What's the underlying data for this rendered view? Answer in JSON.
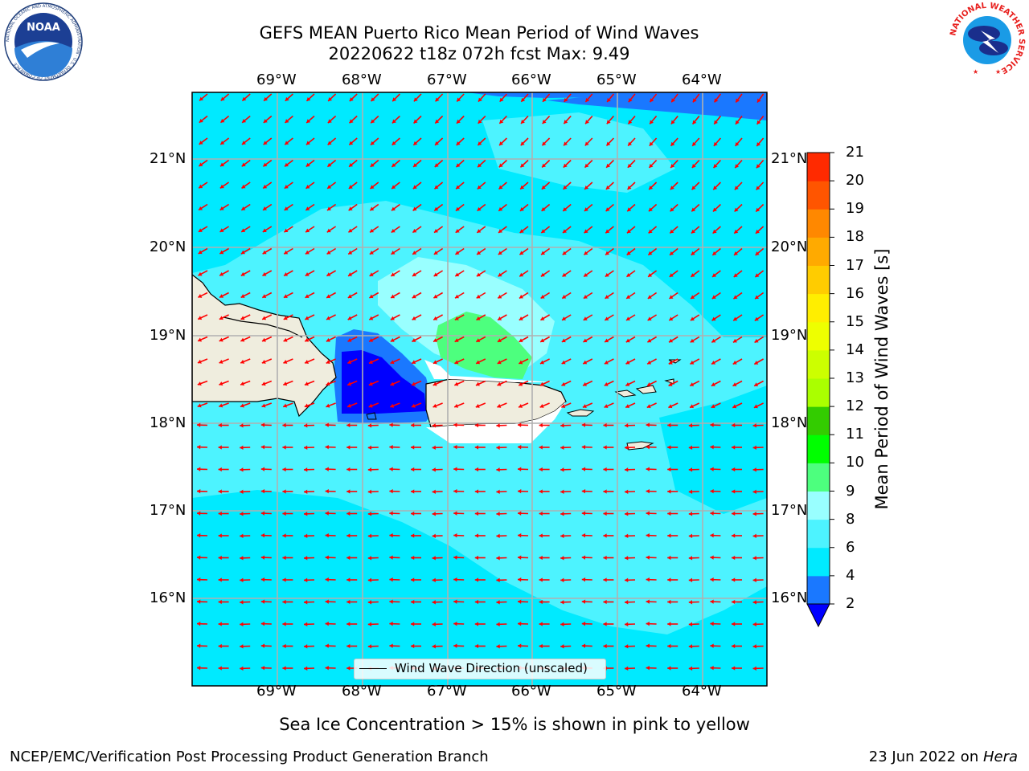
{
  "header": {
    "title_line1": "GEFS MEAN Puerto Rico Mean Period of Wind Waves",
    "title_line2": "20220622 t18z 072h fcst   Max: 9.49"
  },
  "map": {
    "lon_labels": [
      "69°W",
      "68°W",
      "67°W",
      "66°W",
      "65°W",
      "64°W"
    ],
    "lat_labels": [
      "21°N",
      "20°N",
      "19°N",
      "18°N",
      "17°N",
      "16°N"
    ],
    "legend_label": "Wind Wave Direction (unscaled)",
    "arrow_color": "#ff0000",
    "land_color": "#efedde",
    "grid_color": "#b0b0b0"
  },
  "colorbar": {
    "title": "Mean Period of Wind Waves [s]",
    "ticks": [
      "2",
      "4",
      "6",
      "8",
      "9",
      "10",
      "11",
      "12",
      "13",
      "14",
      "15",
      "16",
      "17",
      "18",
      "19",
      "20",
      "21"
    ],
    "colors": [
      "#0000ff",
      "#1a78ff",
      "#00eaff",
      "#4df3ff",
      "#99ffff",
      "#4dff7e",
      "#00ff00",
      "#33cc00",
      "#aaff00",
      "#ccff00",
      "#eeff00",
      "#ffee00",
      "#ffcc00",
      "#ffaa00",
      "#ff8800",
      "#ff5500",
      "#ff2a00",
      "#ff0000"
    ]
  },
  "footer": {
    "sea_ice_note": "Sea Ice Concentration > 15% is shown in pink to yellow",
    "branch": "NCEP/EMC/Verification Post Processing Product Generation Branch",
    "date": "23 Jun 2022 on ",
    "machine": "Hera"
  },
  "logos": {
    "left_text": "NOAA",
    "left_ring_text": "NATIONAL OCEANIC AND ATMOSPHERIC ADMINISTRATION · U.S. DEPARTMENT OF COMMERCE",
    "right_ring_text": "NATIONAL WEATHER SERVICE"
  }
}
